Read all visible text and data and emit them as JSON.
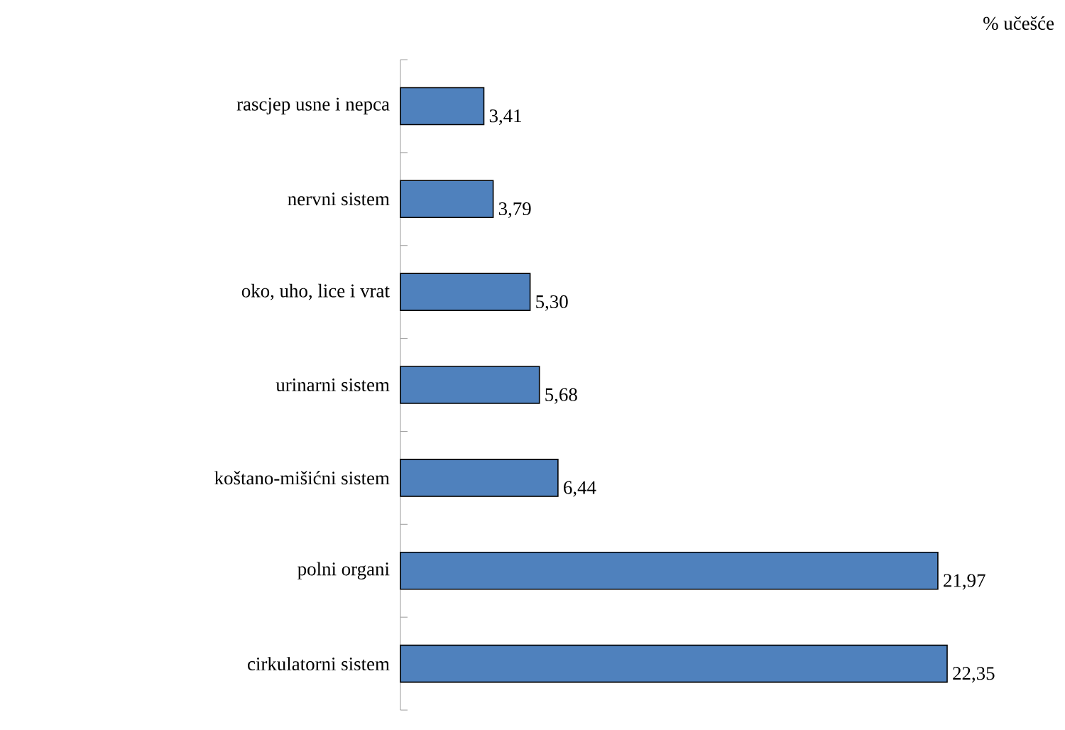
{
  "chart_data": {
    "type": "bar",
    "orientation": "horizontal",
    "categories": [
      "rascjep usne i nepca",
      "nervni sistem",
      "oko, uho, lice i vrat",
      "urinarni sistem",
      "koštano-mišićni sistem",
      "polni organi",
      "cirkulatorni sistem"
    ],
    "values": [
      3.41,
      3.79,
      5.3,
      5.68,
      6.44,
      21.97,
      22.35
    ],
    "value_labels": [
      "3,41",
      "3,79",
      "5,30",
      "5,68",
      "6,44",
      "21,97",
      "22,35"
    ],
    "color": "#4f81bd",
    "annotations": [
      "% učešće"
    ]
  }
}
